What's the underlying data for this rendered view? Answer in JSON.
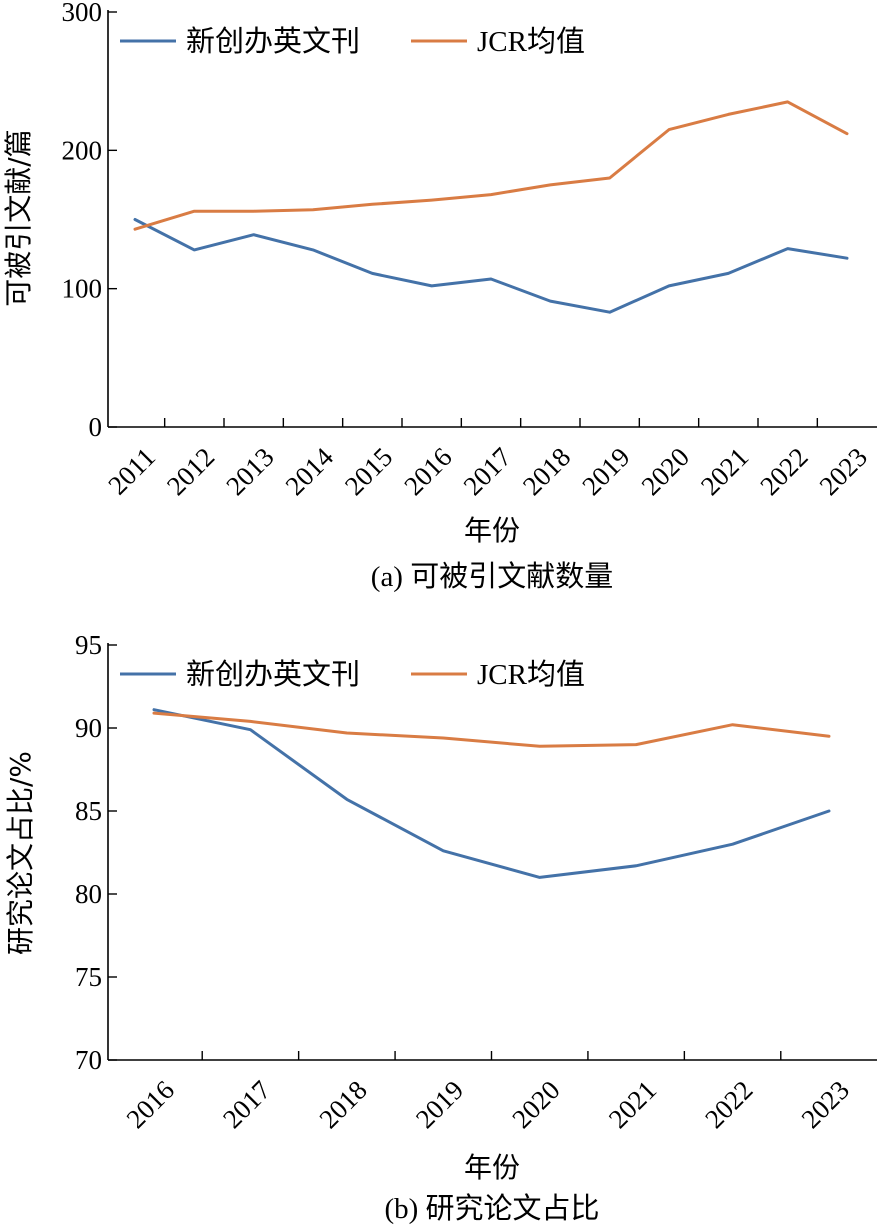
{
  "chart_data": [
    {
      "type": "line",
      "caption": "(a) 可被引文献数量",
      "xlabel": "年份",
      "ylabel": "可被引文献/篇",
      "x": [
        "2011",
        "2012",
        "2013",
        "2014",
        "2015",
        "2016",
        "2017",
        "2018",
        "2019",
        "2020",
        "2021",
        "2022",
        "2023"
      ],
      "ylim": [
        0,
        300
      ],
      "yticks": [
        "0",
        "100",
        "200",
        "300"
      ],
      "legend_position": "top-left",
      "series": [
        {
          "name": "新创办英文刊",
          "color": "#4472a8",
          "values": [
            150,
            128,
            139,
            128,
            111,
            102,
            107,
            91,
            83,
            102,
            111,
            129,
            122
          ]
        },
        {
          "name": "JCR均值",
          "color": "#d97c44",
          "values": [
            143,
            156,
            156,
            157,
            161,
            164,
            168,
            175,
            180,
            215,
            226,
            235,
            212
          ]
        }
      ]
    },
    {
      "type": "line",
      "caption": "(b) 研究论文占比",
      "xlabel": "年份",
      "ylabel": "研究论文占比/%",
      "x": [
        "2016",
        "2017",
        "2018",
        "2019",
        "2020",
        "2021",
        "2022",
        "2023"
      ],
      "ylim": [
        70,
        95
      ],
      "yticks": [
        "70",
        "75",
        "80",
        "85",
        "90",
        "95"
      ],
      "legend_position": "top-left",
      "series": [
        {
          "name": "新创办英文刊",
          "color": "#4472a8",
          "values": [
            91.1,
            89.9,
            85.7,
            82.6,
            81.0,
            81.7,
            83.0,
            85.0
          ]
        },
        {
          "name": "JCR均值",
          "color": "#d97c44",
          "values": [
            90.9,
            90.4,
            89.7,
            89.4,
            88.9,
            89.0,
            90.2,
            89.5
          ]
        }
      ]
    }
  ]
}
